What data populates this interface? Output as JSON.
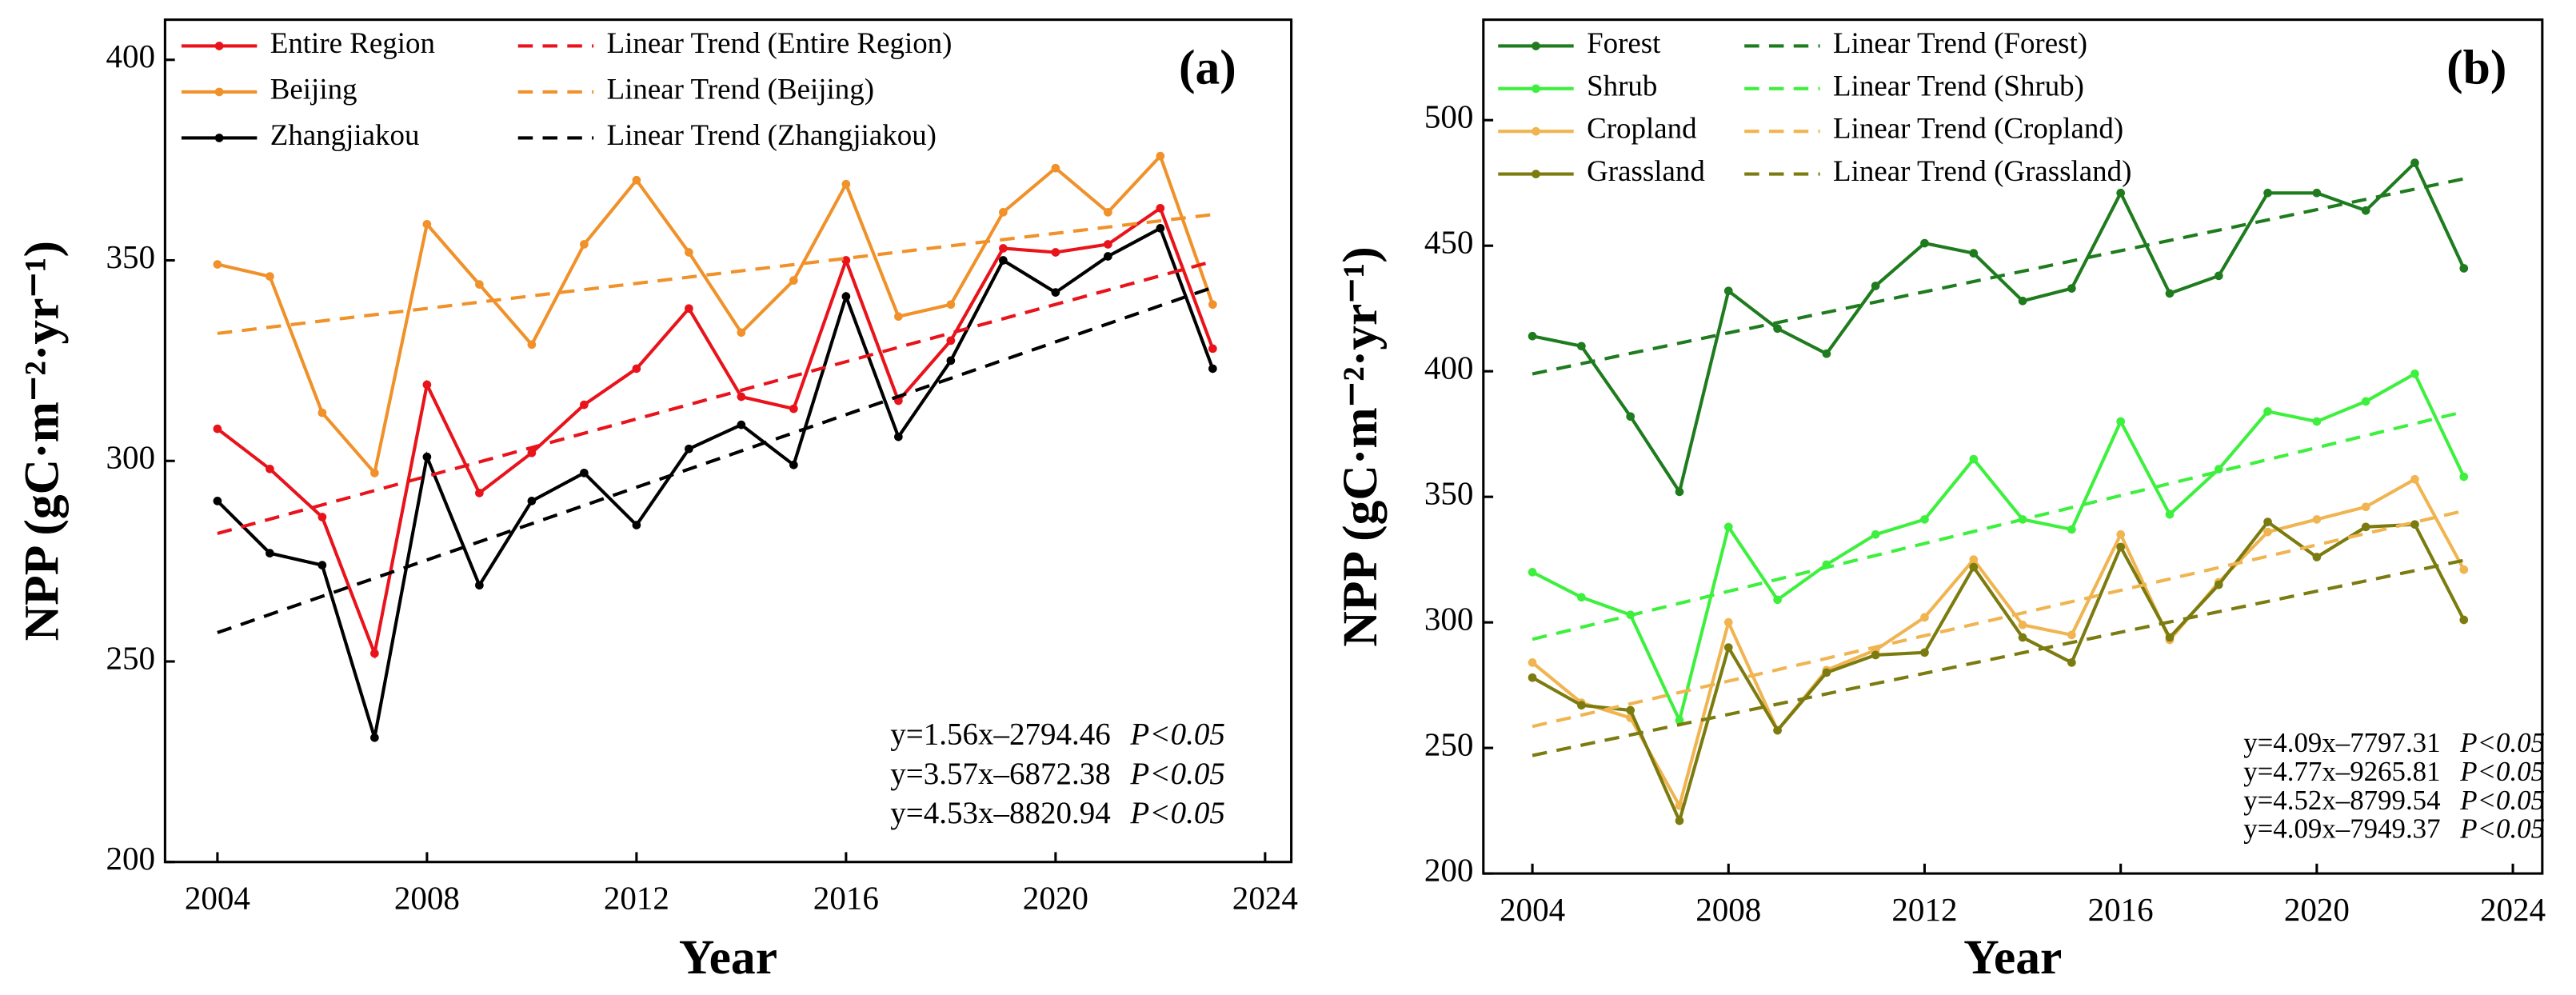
{
  "chart_data": [
    {
      "type": "line",
      "label": "(a)",
      "xlabel": "Year",
      "ylabel": "NPP (gC·m⁻²·yr⁻¹)",
      "x": [
        2004,
        2005,
        2006,
        2007,
        2008,
        2009,
        2010,
        2011,
        2012,
        2013,
        2014,
        2015,
        2016,
        2017,
        2018,
        2019,
        2020,
        2021,
        2022,
        2023
      ],
      "xlim": [
        2003,
        2024.5
      ],
      "xticks": [
        2004,
        2008,
        2012,
        2016,
        2020,
        2024
      ],
      "ylim": [
        200,
        410
      ],
      "yticks": [
        200,
        250,
        300,
        350,
        400
      ],
      "series": [
        {
          "name": "Entire Region",
          "color": "#e8131b",
          "values": [
            308,
            298,
            286,
            252,
            319,
            292,
            302,
            314,
            323,
            338,
            316,
            313,
            350,
            315,
            330,
            353,
            352,
            354,
            363,
            328
          ]
        },
        {
          "name": "Beijing",
          "color": "#f0912a",
          "values": [
            349,
            346,
            312,
            297,
            359,
            344,
            329,
            354,
            370,
            352,
            332,
            345,
            369,
            336,
            339,
            362,
            373,
            362,
            376,
            339
          ]
        },
        {
          "name": "Zhangjiakou",
          "color": "#000000",
          "values": [
            290,
            277,
            274,
            231,
            301,
            269,
            290,
            297,
            284,
            303,
            309,
            299,
            341,
            306,
            325,
            350,
            342,
            351,
            358,
            323
          ]
        },
        {
          "name": "Linear Trend (Entire Region)",
          "color": "#e8131b",
          "dashed": true,
          "x": [
            2004,
            2023
          ],
          "values": [
            281.9,
            349.73
          ]
        },
        {
          "name": "Linear Trend (Beijing)",
          "color": "#f0912a",
          "dashed": true,
          "x": [
            2004,
            2023
          ],
          "values": [
            331.78,
            361.42
          ]
        },
        {
          "name": "Linear Trend (Zhangjiakou)",
          "color": "#000000",
          "dashed": true,
          "x": [
            2004,
            2023
          ],
          "values": [
            257.18,
            343.25
          ]
        }
      ],
      "annotations": [
        {
          "text": "y=1.56x–2794.46",
          "p": "P<0.05",
          "color": "#f0912a"
        },
        {
          "text": "y=3.57x–6872.38",
          "p": "P<0.05",
          "color": "#e8131b"
        },
        {
          "text": "y=4.53x–8820.94",
          "p": "P<0.05",
          "color": "#000000"
        }
      ]
    },
    {
      "type": "line",
      "label": "(b)",
      "xlabel": "Year",
      "ylabel": "NPP (gC·m⁻²·yr⁻¹)",
      "x": [
        2004,
        2005,
        2006,
        2007,
        2008,
        2009,
        2010,
        2011,
        2012,
        2013,
        2014,
        2015,
        2016,
        2017,
        2018,
        2019,
        2020,
        2021,
        2022,
        2023
      ],
      "xlim": [
        2003,
        2024.6
      ],
      "xticks": [
        2004,
        2008,
        2012,
        2016,
        2020,
        2024
      ],
      "ylim": [
        200,
        540
      ],
      "yticks": [
        200,
        250,
        300,
        350,
        400,
        450,
        500
      ],
      "series": [
        {
          "name": "Forest",
          "color": "#1e7b1e",
          "values": [
            414,
            410,
            382,
            352,
            432,
            417,
            407,
            434,
            451,
            447,
            428,
            433,
            471,
            431,
            438,
            471,
            471,
            464,
            483,
            441
          ]
        },
        {
          "name": "Shrub",
          "color": "#3ef03e",
          "values": [
            320,
            310,
            303,
            261,
            338,
            309,
            323,
            335,
            341,
            365,
            341,
            337,
            380,
            343,
            361,
            384,
            380,
            388,
            399,
            358
          ]
        },
        {
          "name": "Cropland",
          "color": "#f0b450",
          "values": [
            284,
            268,
            262,
            227,
            300,
            257,
            281,
            289,
            302,
            325,
            299,
            295,
            335,
            293,
            316,
            336,
            341,
            346,
            357,
            321
          ]
        },
        {
          "name": "Grassland",
          "color": "#7b7b10",
          "values": [
            278,
            267,
            265,
            221,
            290,
            257,
            280,
            287,
            288,
            322,
            294,
            284,
            330,
            294,
            315,
            340,
            326,
            338,
            339,
            301
          ]
        },
        {
          "name": "Linear Trend (Forest)",
          "color": "#1e7b1e",
          "dashed": true,
          "x": [
            2004,
            2023
          ],
          "values": [
            398.93,
            476.64
          ]
        },
        {
          "name": "Linear Trend (Shrub)",
          "color": "#3ef03e",
          "dashed": true,
          "x": [
            2004,
            2023
          ],
          "values": [
            293.27,
            383.9
          ]
        },
        {
          "name": "Linear Trend (Cropland)",
          "color": "#f0b450",
          "dashed": true,
          "x": [
            2004,
            2023
          ],
          "values": [
            258.54,
            344.42
          ]
        },
        {
          "name": "Linear Trend (Grassland)",
          "color": "#7b7b10",
          "dashed": true,
          "x": [
            2004,
            2023
          ],
          "values": [
            246.99,
            324.7
          ]
        }
      ],
      "annotations": [
        {
          "text": "y=4.09x–7797.31",
          "p": "P<0.05",
          "color": "#1e7b1e"
        },
        {
          "text": "y=4.77x–9265.81",
          "p": "P<0.05",
          "color": "#3ef03e"
        },
        {
          "text": "y=4.52x–8799.54",
          "p": "P<0.05",
          "color": "#f0b450"
        },
        {
          "text": "y=4.09x–7949.37",
          "p": "P<0.05",
          "color": "#7b7b10"
        }
      ]
    }
  ]
}
